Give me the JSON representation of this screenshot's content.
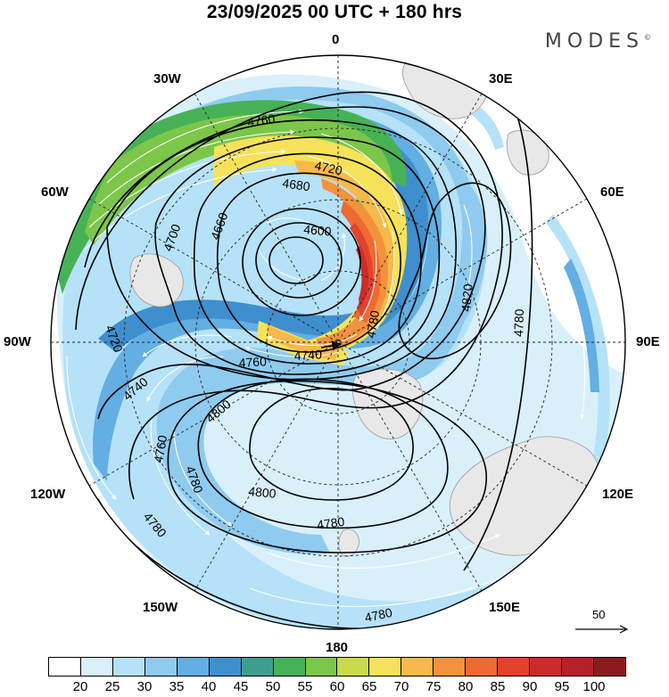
{
  "title": "23/09/2025  00 UTC  + 180 hrs",
  "brand": "MODES",
  "brand_mark": "©",
  "longitudes": {
    "top": "0",
    "upper_left": "30W",
    "upper_right": "30E",
    "mid_upper_left": "60W",
    "mid_upper_right": "60E",
    "left": "90W",
    "right": "90E",
    "mid_lower_left": "120W",
    "mid_lower_right": "120E",
    "lower_left": "150W",
    "lower_right": "150E",
    "bottom": "180"
  },
  "contour_labels": [
    "4760",
    "4720",
    "4680",
    "4660",
    "4600",
    "4700",
    "4720",
    "4740",
    "4760",
    "4740",
    "4760",
    "4780",
    "4800",
    "4780",
    "4800",
    "4780",
    "4820",
    "4780",
    "4780",
    "4780"
  ],
  "wind_reference": {
    "label": "50"
  },
  "colorbar": {
    "colors": [
      "#ffffff",
      "#d9f0fb",
      "#b5e2f8",
      "#8fcbef",
      "#63aee2",
      "#3f8fce",
      "#3e9e8e",
      "#46b255",
      "#7cc64a",
      "#c9db4b",
      "#f6e25a",
      "#f6b94a",
      "#f3923c",
      "#ef6a33",
      "#e2422c",
      "#cc2b2b",
      "#b5202a",
      "#8e1a1e"
    ],
    "tick_labels": [
      "20",
      "25",
      "30",
      "35",
      "40",
      "45",
      "50",
      "55",
      "60",
      "65",
      "70",
      "75",
      "80",
      "85",
      "90",
      "95",
      "100"
    ]
  }
}
